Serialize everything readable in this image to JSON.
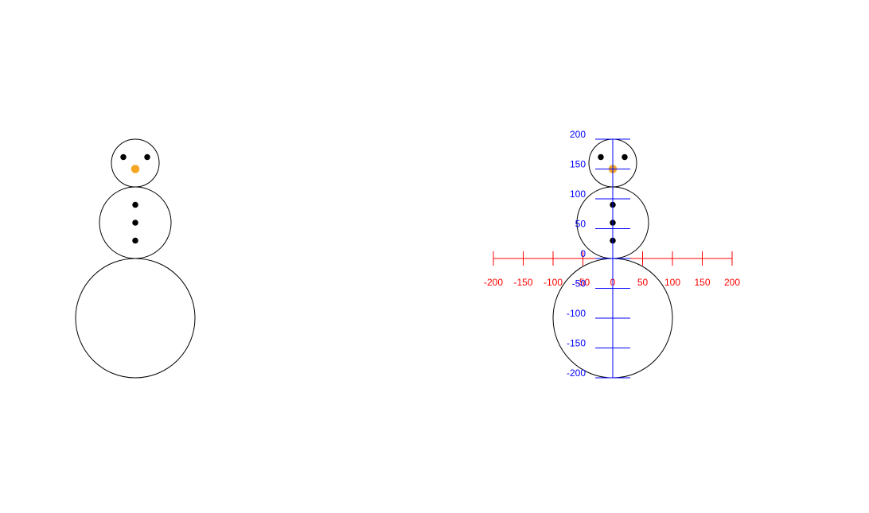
{
  "colors": {
    "outline": "#000000",
    "eye": "#000000",
    "button": "#000000",
    "nose": "#f5a623",
    "x_axis": "#ff0000",
    "y_axis": "#0000ff"
  },
  "snowman": {
    "parts": [
      {
        "part": "bottom-body",
        "cx": 0,
        "cy": -100,
        "r": 100,
        "filled": false
      },
      {
        "part": "middle-body",
        "cx": 0,
        "cy": 60,
        "r": 60,
        "filled": false
      },
      {
        "part": "head",
        "cx": 0,
        "cy": 160,
        "r": 40,
        "filled": false
      },
      {
        "part": "left-eye",
        "cx": -20,
        "cy": 170,
        "r": 5,
        "filled": true,
        "color_key": "eye"
      },
      {
        "part": "right-eye",
        "cx": 20,
        "cy": 170,
        "r": 5,
        "filled": true,
        "color_key": "eye"
      },
      {
        "part": "nose",
        "cx": 0,
        "cy": 150,
        "r": 7,
        "filled": true,
        "color_key": "nose"
      },
      {
        "part": "top-button",
        "cx": 0,
        "cy": 90,
        "r": 5,
        "filled": true,
        "color_key": "button"
      },
      {
        "part": "middle-button",
        "cx": 0,
        "cy": 60,
        "r": 5,
        "filled": true,
        "color_key": "button"
      },
      {
        "part": "bottom-button",
        "cx": 0,
        "cy": 30,
        "r": 5,
        "filled": true,
        "color_key": "button"
      }
    ]
  },
  "axes": {
    "x_ticks": [
      -200,
      -150,
      -100,
      -50,
      0,
      50,
      100,
      150,
      200
    ],
    "x_tick_labels": [
      "-200",
      "-150",
      "-100",
      "-50",
      "0",
      "50",
      "100",
      "150",
      "200"
    ],
    "y_ticks": [
      200,
      150,
      100,
      50,
      0,
      -50,
      -100,
      -150,
      -200
    ],
    "y_tick_labels": [
      "200",
      "150",
      "100",
      "50",
      "0",
      "-50",
      "-100",
      "-150",
      "-200"
    ],
    "x_range": [
      -200,
      200
    ],
    "y_range": [
      -200,
      200
    ]
  }
}
